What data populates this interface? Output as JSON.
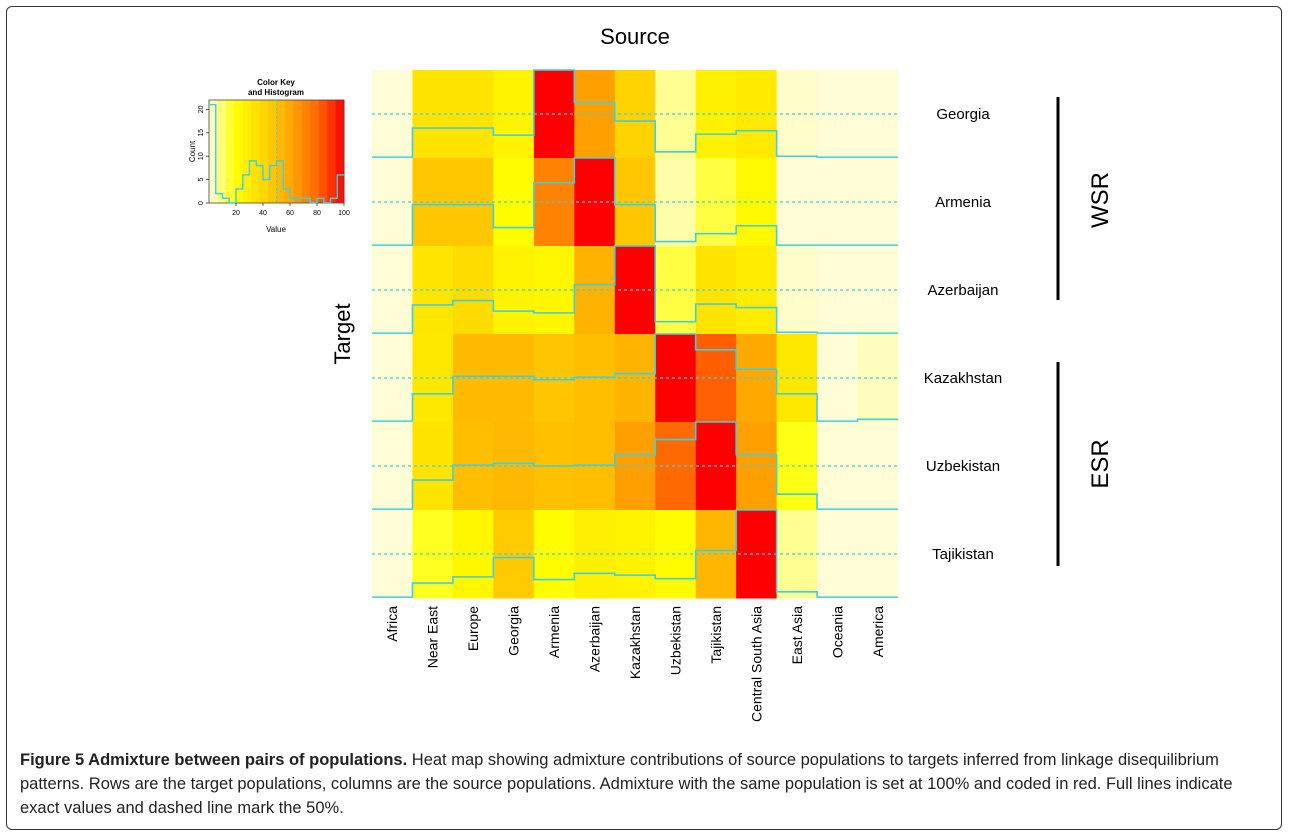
{
  "figure": {
    "caption_title": "Figure 5 Admixture between pairs of populations.",
    "caption_text": " Heat map showing admixture contributions of source populations to targets inferred from linkage disequilibrium patterns. Rows are the target populations, columns are the source populations. Admixture with the same population is set at 100% and coded in red. Full lines indicate exact values and dashed line mark the 50%."
  },
  "chart_data": {
    "type": "heatmap",
    "title": "Source",
    "xlabel": "Source",
    "ylabel": "Target",
    "columns": [
      "Africa",
      "Near East",
      "Europe",
      "Georgia",
      "Armenia",
      "Azerbaijan",
      "Kazakhstan",
      "Uzbekistan",
      "Tajikistan",
      "Central South Asia",
      "East Asia",
      "Oceania",
      "America"
    ],
    "rows": [
      "Georgia",
      "Armenia",
      "Azerbaijan",
      "Kazakhstan",
      "Uzbekistan",
      "Tajikistan"
    ],
    "values": [
      [
        1,
        34,
        34,
        26,
        100,
        63,
        42,
        7,
        27,
        31,
        2,
        1,
        1
      ],
      [
        1,
        47,
        47,
        21,
        72,
        100,
        47,
        5,
        14,
        23,
        1,
        1,
        1
      ],
      [
        1,
        33,
        38,
        26,
        24,
        56,
        100,
        14,
        34,
        30,
        2,
        1,
        1
      ],
      [
        1,
        32,
        52,
        52,
        48,
        51,
        55,
        100,
        82,
        60,
        32,
        1,
        3
      ],
      [
        1,
        34,
        51,
        53,
        50,
        51,
        63,
        80,
        100,
        63,
        18,
        1,
        1
      ],
      [
        1,
        17,
        24,
        46,
        21,
        28,
        26,
        22,
        54,
        100,
        7,
        1,
        1
      ]
    ],
    "range": [
      0,
      100
    ],
    "reference_line": 50,
    "colorscale": [
      "#fffde0",
      "#ffff00",
      "#ffd800",
      "#ffa800",
      "#ff6a00",
      "#ff0000"
    ],
    "trace_color": "#3fd0e0",
    "groups": [
      {
        "label": "WSR",
        "rows": [
          "Georgia",
          "Armenia",
          "Azerbaijan"
        ]
      },
      {
        "label": "ESR",
        "rows": [
          "Kazakhstan",
          "Uzbekistan",
          "Tajikistan"
        ]
      }
    ],
    "color_key": {
      "title_line1": "Color Key",
      "title_line2": "and Histogram",
      "ylabel": "Count",
      "xlabel": "Value",
      "x_ticks": [
        "20",
        "40",
        "60",
        "80",
        "100"
      ],
      "y_ticks": [
        "0",
        "5",
        "10",
        "15",
        "20"
      ],
      "histogram": [
        21,
        2,
        1,
        0,
        3,
        6,
        9,
        8,
        5,
        8,
        9,
        3,
        1,
        1,
        1,
        0,
        1,
        0,
        1,
        6
      ]
    }
  }
}
